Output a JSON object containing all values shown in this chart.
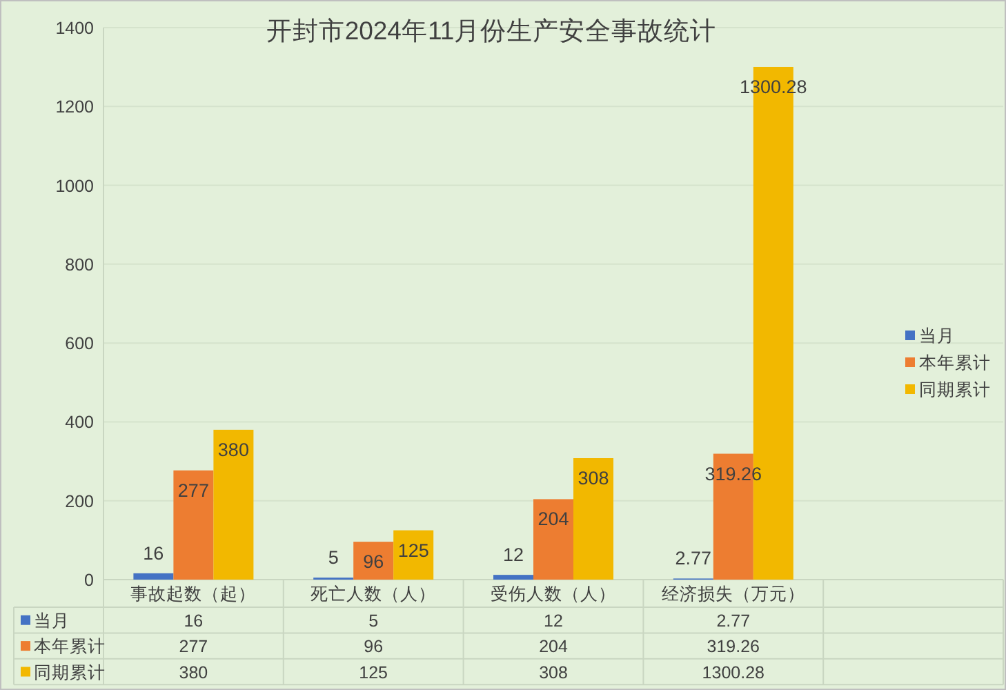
{
  "chart_data": [
    {
      "type": "bar",
      "title": "开封市2024年11月份生产安全事故统计",
      "categories": [
        null,
        null,
        null,
        null,
        null
      ],
      "tick_labels": "y",
      "series": [
        {
          "name": "当月",
          "color": "#4472c4",
          "values": [
            16,
            5,
            12,
            2.77,
            null
          ],
          "value_labels": [
            "16",
            "5",
            "12",
            "2.77",
            null
          ]
        },
        {
          "name": "本年累计",
          "color": "#ed7d31",
          "values": [
            277,
            96,
            204,
            319.26,
            null
          ],
          "value_labels": [
            "277",
            "96",
            "204",
            "319.26",
            null
          ]
        },
        {
          "name": "同期累计",
          "color": "#f2b800",
          "values": [
            380,
            125,
            308,
            1300.28,
            null
          ],
          "value_labels": [
            "380",
            "125",
            "308",
            "1300.28",
            null
          ]
        }
      ],
      "ylim": [
        0,
        1400
      ],
      "yticks": [
        0,
        200,
        400,
        600,
        800,
        1000,
        1200,
        1400
      ],
      "grid": "y",
      "legend": "right"
    },
    {
      "type": "other",
      "categories": [
        "事故起数（起）",
        "死亡人数（人）",
        "受伤人数（人）",
        "经济损失（万元）",
        null
      ],
      "series": [
        {
          "name": "当月",
          "color": "#4472c4",
          "values": [
            16,
            5,
            12,
            2.77,
            null
          ]
        },
        {
          "name": "本年累计",
          "color": "#ed7d31",
          "values": [
            277,
            96,
            204,
            319.26,
            null
          ]
        },
        {
          "name": "同期累计",
          "color": "#f2b800",
          "values": [
            380,
            125,
            308,
            1300.28,
            null
          ]
        }
      ],
      "legend": "left",
      "data_labels": true
    }
  ]
}
